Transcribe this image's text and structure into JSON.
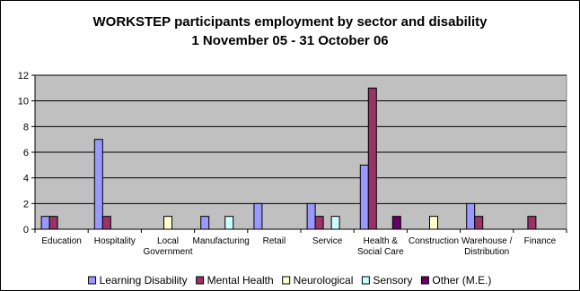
{
  "chart_data": {
    "type": "bar",
    "title": "WORKSTEP participants employment by sector and disability",
    "subtitle": "1 November 05 - 31 October 06",
    "categories": [
      [
        "Education"
      ],
      [
        "Hospitality"
      ],
      [
        "Local",
        "Government"
      ],
      [
        "Manufacturing"
      ],
      [
        "Retail"
      ],
      [
        "Service"
      ],
      [
        "Health &",
        "Social Care"
      ],
      [
        "Construction"
      ],
      [
        "Warehouse /",
        "Distribution"
      ],
      [
        "Finance"
      ]
    ],
    "series": [
      {
        "name": "Learning Disability",
        "color": "#9999ff",
        "values": [
          1,
          7,
          0,
          1,
          2,
          2,
          5,
          0,
          2,
          0
        ]
      },
      {
        "name": "Mental Health",
        "color": "#993366",
        "values": [
          1,
          1,
          0,
          0,
          0,
          1,
          11,
          0,
          1,
          1
        ]
      },
      {
        "name": "Neurological",
        "color": "#ffffcc",
        "values": [
          0,
          0,
          1,
          0,
          0,
          0,
          0,
          1,
          0,
          0
        ]
      },
      {
        "name": "Sensory",
        "color": "#ccffff",
        "values": [
          0,
          0,
          0,
          1,
          0,
          1,
          0,
          0,
          0,
          0
        ]
      },
      {
        "name": "Other (M.E.)",
        "color": "#660066",
        "values": [
          0,
          0,
          0,
          0,
          0,
          0,
          1,
          0,
          0,
          0
        ]
      }
    ],
    "ylim": [
      0,
      12
    ],
    "yticks": [
      0,
      2,
      4,
      6,
      8,
      10,
      12
    ],
    "grid": true,
    "legend": "bottom",
    "plot_background": "#c0c0c0"
  }
}
